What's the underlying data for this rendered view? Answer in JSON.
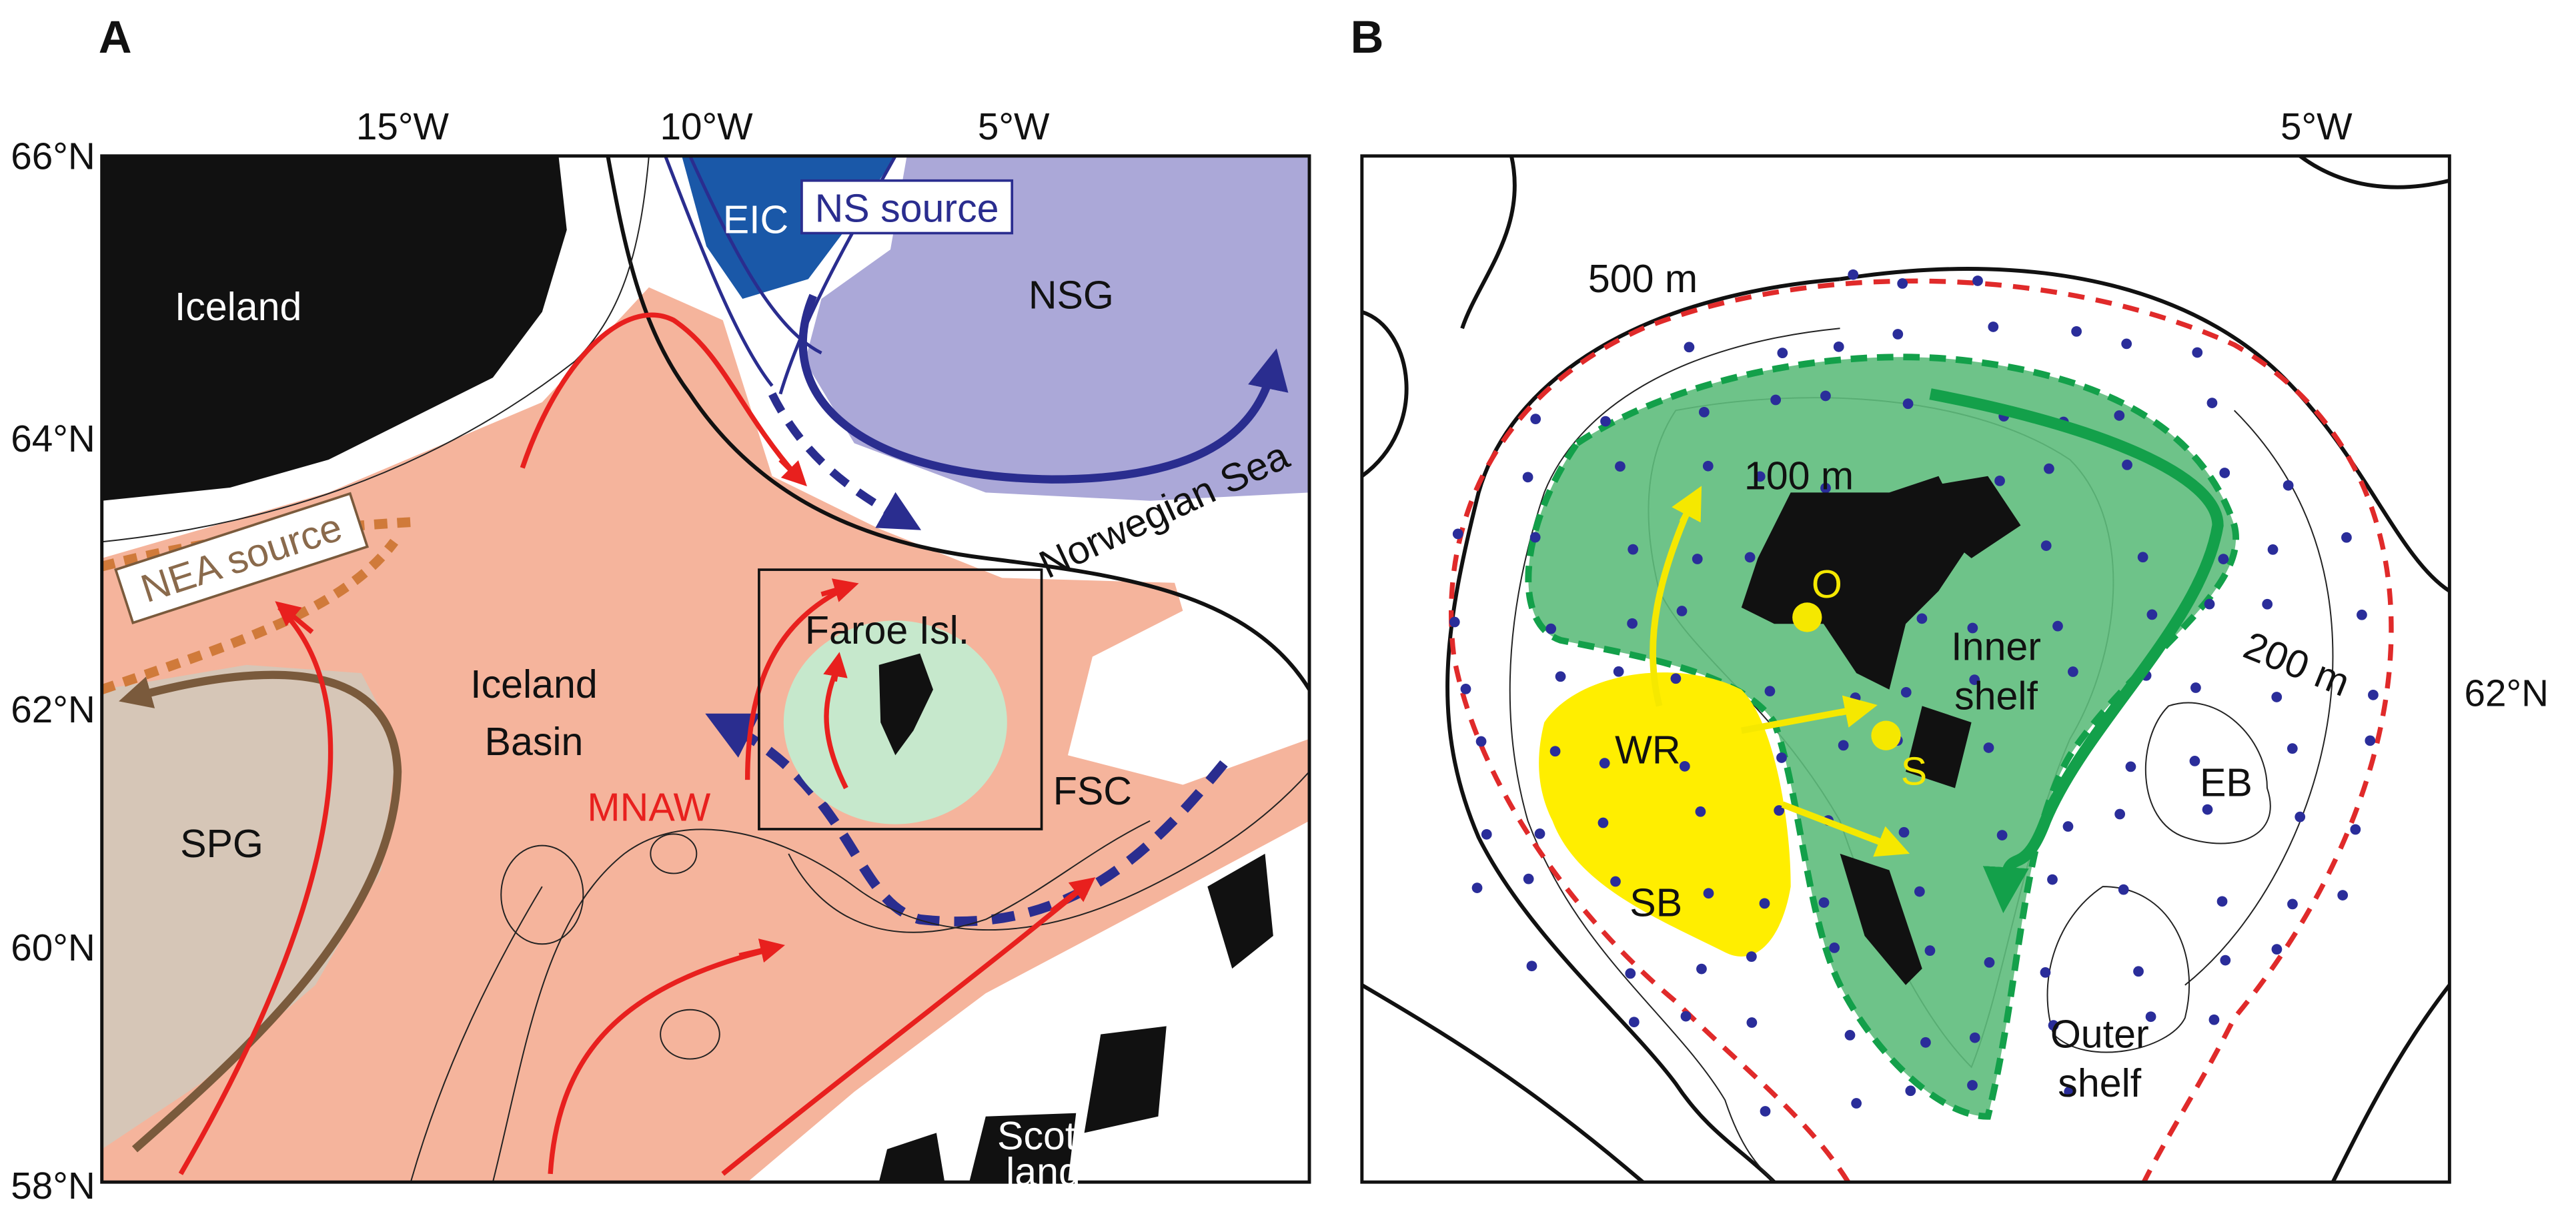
{
  "panel_a": {
    "letter": "A",
    "lon_ticks": [
      "15°W",
      "10°W",
      "5°W"
    ],
    "lat_ticks": [
      "66°N",
      "64°N",
      "62°N",
      "60°N",
      "58°N"
    ],
    "labels": {
      "iceland": "Iceland",
      "eic": "EIC",
      "ns_source": "NS source",
      "nsg": "NSG",
      "norwegian_sea": "Norwegian Sea",
      "nea_source": "NEA source",
      "iceland_basin": [
        "Iceland",
        "Basin"
      ],
      "mnaw": "MNAW",
      "faroe": "Faroe Isl.",
      "fsc": "FSC",
      "spg": "SPG",
      "scotland": [
        "Scot-",
        "land"
      ]
    }
  },
  "panel_b": {
    "letter": "B",
    "lon_ticks": [
      "5°W"
    ],
    "lat_ticks": [
      "62°N"
    ],
    "labels": {
      "d500": "500 m",
      "d100": "100 m",
      "d200": "200 m",
      "o": "O",
      "s": "S",
      "inner_shelf": [
        "Inner",
        "shelf"
      ],
      "wr": "WR",
      "sb": "SB",
      "eb": "EB",
      "outer_shelf": [
        "Outer",
        "shelf"
      ]
    }
  }
}
